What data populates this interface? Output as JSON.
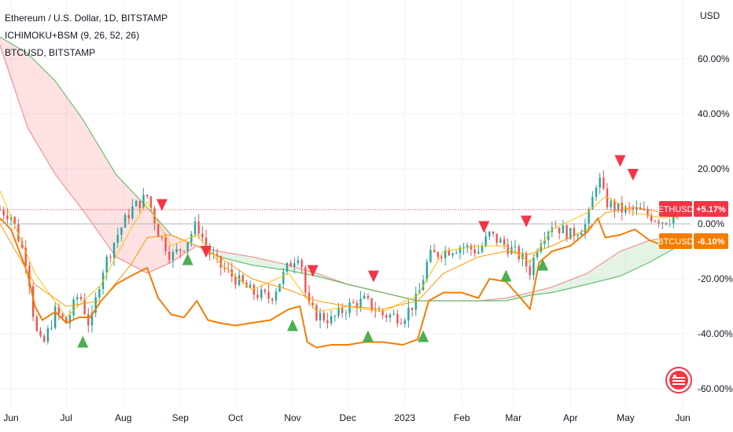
{
  "legend": {
    "symbol": "Ethereum / U.S. Dollar, 1D, BITSTAMP",
    "indicator": "ICHIMOKU+BSM (9, 26, 52, 26)",
    "compare": "BTCUSD, BITSTAMP"
  },
  "colors": {
    "candle_up": "#26a69a",
    "candle_down": "#ef5350",
    "cloud_bull": "#4caf50",
    "cloud_bear": "#f23645",
    "conversion_line": "#ffc107",
    "base_line": "#ff9800",
    "compare_line": "#f57c00",
    "buy_marker": "#4caf50",
    "sell_marker": "#f23645",
    "ethusd_badge": "#f23645",
    "btcusd_badge": "#f57c00"
  },
  "chart_data": {
    "type": "line",
    "title": "Ethereum / U.S. Dollar, 1D, BITSTAMP",
    "yscale": "percent",
    "ylabel": "USD",
    "ylim": [
      -62,
      70
    ],
    "yticks": [
      "60.00%",
      "40.00%",
      "20.00%",
      "0.00%",
      "-20.00%",
      "-40.00%",
      "-60.00%"
    ],
    "ytick_values": [
      60,
      40,
      20,
      0,
      -20,
      -40,
      -60
    ],
    "xticks": [
      "Jun",
      "Jul",
      "Aug",
      "Sep",
      "Oct",
      "Nov",
      "Dec",
      "2023",
      "Feb",
      "Mar",
      "Apr",
      "May",
      "Jun"
    ],
    "x_range": [
      "2022-05-26",
      "2023-06-01"
    ],
    "series": [
      {
        "name": "ETHUSD",
        "last_label": "+5.17%",
        "dates": [
          "2022-05-26",
          "2022-06-01",
          "2022-06-10",
          "2022-06-14",
          "2022-06-18",
          "2022-06-25",
          "2022-07-01",
          "2022-07-08",
          "2022-07-14",
          "2022-07-20",
          "2022-07-28",
          "2022-08-05",
          "2022-08-14",
          "2022-08-20",
          "2022-08-27",
          "2022-09-03",
          "2022-09-10",
          "2022-09-16",
          "2022-09-22",
          "2022-10-01",
          "2022-10-10",
          "2022-10-20",
          "2022-10-30",
          "2022-11-05",
          "2022-11-09",
          "2022-11-14",
          "2022-11-22",
          "2022-12-01",
          "2022-12-10",
          "2022-12-20",
          "2022-12-31",
          "2023-01-08",
          "2023-01-14",
          "2023-01-22",
          "2023-02-01",
          "2023-02-10",
          "2023-02-16",
          "2023-02-25",
          "2023-03-05",
          "2023-03-10",
          "2023-03-15",
          "2023-03-22",
          "2023-04-01",
          "2023-04-10",
          "2023-04-16",
          "2023-04-20",
          "2023-04-28",
          "2023-05-06",
          "2023-05-14",
          "2023-05-22",
          "2023-05-30"
        ],
        "values": [
          5,
          3,
          -15,
          -38,
          -45,
          -32,
          -36,
          -25,
          -38,
          -18,
          -5,
          5,
          10,
          -3,
          -12,
          -8,
          0,
          -10,
          -15,
          -20,
          -25,
          -27,
          -15,
          -10,
          -30,
          -33,
          -35,
          -30,
          -28,
          -33,
          -34,
          -27,
          -12,
          -10,
          -8,
          -10,
          -4,
          -8,
          -12,
          -17,
          -6,
          0,
          -4,
          0,
          18,
          8,
          5,
          5,
          3,
          1,
          4
        ]
      },
      {
        "name": "BTCUSD",
        "last_label": "-6.10%",
        "dates": [
          "2022-05-26",
          "2022-06-01",
          "2022-06-10",
          "2022-06-14",
          "2022-06-18",
          "2022-06-25",
          "2022-07-01",
          "2022-07-08",
          "2022-07-14",
          "2022-07-20",
          "2022-07-28",
          "2022-08-05",
          "2022-08-14",
          "2022-08-20",
          "2022-08-27",
          "2022-09-03",
          "2022-09-10",
          "2022-09-16",
          "2022-09-22",
          "2022-10-01",
          "2022-10-10",
          "2022-10-20",
          "2022-10-30",
          "2022-11-05",
          "2022-11-09",
          "2022-11-14",
          "2022-11-22",
          "2022-12-01",
          "2022-12-10",
          "2022-12-20",
          "2022-12-31",
          "2023-01-08",
          "2023-01-14",
          "2023-01-22",
          "2023-02-01",
          "2023-02-10",
          "2023-02-16",
          "2023-02-25",
          "2023-03-05",
          "2023-03-10",
          "2023-03-15",
          "2023-03-22",
          "2023-04-01",
          "2023-04-10",
          "2023-04-16",
          "2023-04-20",
          "2023-04-28",
          "2023-05-06",
          "2023-05-14",
          "2023-05-22",
          "2023-05-30"
        ],
        "values": [
          2,
          -2,
          -18,
          -30,
          -35,
          -32,
          -36,
          -34,
          -34,
          -28,
          -22,
          -19,
          -16,
          -27,
          -33,
          -34,
          -28,
          -35,
          -36,
          -37,
          -36,
          -35,
          -31,
          -30,
          -43,
          -45,
          -44,
          -44,
          -43,
          -43,
          -44,
          -42,
          -28,
          -25,
          -25,
          -27,
          -20,
          -21,
          -27,
          -31,
          -14,
          -10,
          -8,
          -3,
          2,
          -5,
          -4,
          -2,
          -6,
          -8,
          -7
        ]
      },
      {
        "name": "Conversion line",
        "dates": [
          "2022-05-26",
          "2022-06-14",
          "2022-07-01",
          "2022-07-20",
          "2022-08-05",
          "2022-08-14",
          "2022-08-27",
          "2022-09-10",
          "2022-09-22",
          "2022-10-10",
          "2022-10-30",
          "2022-11-14",
          "2022-12-01",
          "2022-12-20",
          "2023-01-08",
          "2023-01-22",
          "2023-02-10",
          "2023-02-25",
          "2023-03-10",
          "2023-03-22",
          "2023-04-10",
          "2023-04-20",
          "2023-05-06",
          "2023-05-22",
          "2023-05-30"
        ],
        "values": [
          12,
          -18,
          -34,
          -22,
          -2,
          8,
          -8,
          -4,
          -14,
          -24,
          -18,
          -32,
          -30,
          -32,
          -26,
          -10,
          -8,
          -8,
          -14,
          -2,
          4,
          10,
          4,
          2,
          3
        ]
      },
      {
        "name": "Base line",
        "dates": [
          "2022-05-26",
          "2022-06-14",
          "2022-07-01",
          "2022-07-20",
          "2022-08-05",
          "2022-08-14",
          "2022-08-27",
          "2022-09-10",
          "2022-09-22",
          "2022-10-10",
          "2022-10-30",
          "2022-11-14",
          "2022-12-01",
          "2022-12-20",
          "2023-01-08",
          "2023-01-22",
          "2023-02-10",
          "2023-02-25",
          "2023-03-10",
          "2023-03-22",
          "2023-04-10",
          "2023-04-20",
          "2023-05-06",
          "2023-05-22",
          "2023-05-30"
        ],
        "values": [
          0,
          -22,
          -30,
          -28,
          -15,
          -5,
          -4,
          -8,
          -12,
          -20,
          -24,
          -28,
          -30,
          -31,
          -28,
          -18,
          -12,
          -10,
          -11,
          -8,
          -2,
          4,
          6,
          4,
          2
        ]
      }
    ],
    "cloud": {
      "dates": [
        "2022-05-26",
        "2022-06-10",
        "2022-06-25",
        "2022-07-10",
        "2022-07-28",
        "2022-08-14",
        "2022-08-27",
        "2022-09-10",
        "2022-09-22",
        "2022-10-10",
        "2022-10-30",
        "2022-11-14",
        "2022-12-01",
        "2022-12-20",
        "2023-01-08",
        "2023-01-22",
        "2023-02-10",
        "2023-02-25",
        "2023-03-10",
        "2023-03-22",
        "2023-04-10",
        "2023-04-28",
        "2023-05-14",
        "2023-05-30"
      ],
      "span_a": [
        65,
        35,
        18,
        5,
        -12,
        -18,
        -14,
        -8,
        -10,
        -12,
        -15,
        -18,
        -22,
        -25,
        -28,
        -28,
        -28,
        -27,
        -25,
        -23,
        -18,
        -10,
        -6,
        -4
      ],
      "span_b": [
        68,
        62,
        52,
        38,
        18,
        6,
        -4,
        -8,
        -12,
        -15,
        -17,
        -19,
        -22,
        -25,
        -28,
        -28,
        -28,
        -28,
        -26,
        -25,
        -22,
        -19,
        -14,
        -8
      ]
    },
    "markers": [
      {
        "type": "buy",
        "date": "2022-07-10",
        "value": -43
      },
      {
        "type": "sell",
        "date": "2022-08-22",
        "value": 7
      },
      {
        "type": "buy",
        "date": "2022-09-05",
        "value": -13
      },
      {
        "type": "sell",
        "date": "2022-09-15",
        "value": -10
      },
      {
        "type": "buy",
        "date": "2022-11-01",
        "value": -37
      },
      {
        "type": "sell",
        "date": "2022-11-12",
        "value": -17
      },
      {
        "type": "sell",
        "date": "2022-12-15",
        "value": -19
      },
      {
        "type": "buy",
        "date": "2022-12-12",
        "value": -41
      },
      {
        "type": "buy",
        "date": "2023-01-11",
        "value": -41
      },
      {
        "type": "sell",
        "date": "2023-02-13",
        "value": -1
      },
      {
        "type": "buy",
        "date": "2023-02-25",
        "value": -19
      },
      {
        "type": "sell",
        "date": "2023-03-08",
        "value": 1
      },
      {
        "type": "buy",
        "date": "2023-03-17",
        "value": -15
      },
      {
        "type": "sell",
        "date": "2023-04-28",
        "value": 23
      },
      {
        "type": "sell",
        "date": "2023-05-05",
        "value": 18
      }
    ],
    "reference_lines": [
      {
        "name": "ETHUSD last price",
        "value": 5.17,
        "style": "dotted"
      },
      {
        "name": "zero",
        "value": 0,
        "style": "solid"
      }
    ],
    "grid": true,
    "legend_position": "top-left"
  }
}
